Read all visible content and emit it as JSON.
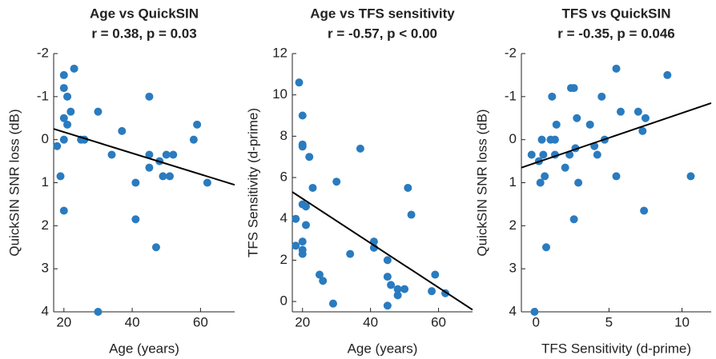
{
  "chart_data": [
    {
      "type": "scatter",
      "title": "Age vs QuickSIN",
      "subtitle": "r = 0.38, p = 0.03",
      "xlabel": "Age (years)",
      "ylabel": "QuickSIN SNR loss (dB)",
      "color": "#2a7bbf",
      "x": [
        18,
        19,
        20,
        20,
        20,
        20,
        20,
        21,
        21,
        22,
        23,
        25,
        26,
        30,
        30,
        34,
        37,
        41,
        41,
        45,
        45,
        45,
        47,
        48,
        49,
        50,
        51,
        52,
        58,
        59,
        62
      ],
      "values": [
        0.15,
        0.85,
        -1.5,
        -1.2,
        -0.5,
        0,
        1.65,
        -1,
        -0.35,
        -0.65,
        -1.65,
        0,
        0,
        -0.65,
        4,
        0.35,
        -0.2,
        1,
        1.85,
        -1,
        0.35,
        0.65,
        2.5,
        0.5,
        0.85,
        0.35,
        0.85,
        0.35,
        0,
        -0.35,
        1
      ],
      "fit_line": {
        "color": "#000000",
        "x": [
          17,
          70
        ],
        "values": [
          -0.25,
          1.05
        ]
      },
      "xlim": [
        17,
        70
      ],
      "xticks": [
        20,
        40,
        60
      ],
      "ylim": [
        -2,
        4
      ],
      "yticks": [
        -2,
        -1,
        0,
        1,
        2,
        3,
        4
      ],
      "y_reversed": true
    },
    {
      "type": "scatter",
      "title": "Age vs TFS sensitivity",
      "subtitle": "r = -0.57, p < 0.00",
      "xlabel": "Age (years)",
      "ylabel": "TFS Sensitivity (d-prime)",
      "color": "#2a7bbf",
      "x": [
        18,
        18,
        19,
        20,
        20,
        20,
        20,
        20,
        20,
        20,
        21,
        21,
        22,
        23,
        25,
        26,
        29,
        30,
        34,
        37,
        41,
        41,
        45,
        45,
        45,
        46,
        48,
        48,
        50,
        51,
        52,
        58,
        59,
        62
      ],
      "values": [
        2.7,
        4,
        10.6,
        9,
        7.6,
        7.5,
        4.7,
        2.9,
        2.5,
        2.3,
        4.6,
        3.7,
        7,
        5.5,
        1.3,
        1,
        -0.1,
        5.8,
        2.3,
        7.4,
        2.9,
        2.6,
        2,
        1.2,
        -0.2,
        0.8,
        0.3,
        0.6,
        0.6,
        5.5,
        4.2,
        0.5,
        1.3,
        0.4
      ],
      "fit_line": {
        "color": "#000000",
        "x": [
          17,
          70
        ],
        "values": [
          5.3,
          -0.4
        ]
      },
      "xlim": [
        17,
        70
      ],
      "xticks": [
        20,
        40,
        60
      ],
      "ylim": [
        -0.5,
        12
      ],
      "yticks": [
        0,
        2,
        4,
        6,
        8,
        10,
        12
      ],
      "y_reversed": false
    },
    {
      "type": "scatter",
      "title": "TFS vs QuickSIN",
      "subtitle": "r = -0.35, p = 0.046",
      "xlabel": "TFS Sensitivity (d-prime)",
      "ylabel": "QuickSIN SNR loss (dB)",
      "color": "#2a7bbf",
      "x": [
        -0.3,
        -0.1,
        0.2,
        0.3,
        0.4,
        0.5,
        0.6,
        0.7,
        1,
        1.1,
        1.3,
        1.4,
        1.3,
        2,
        2.3,
        2.4,
        2.6,
        2.6,
        2.7,
        2.8,
        2.9,
        3.7,
        4,
        4.2,
        4.5,
        4.7,
        5.5,
        5.5,
        5.8,
        7,
        7.3,
        7.4,
        7.5,
        9,
        10.6
      ],
      "values": [
        0.35,
        4,
        0.5,
        1,
        0,
        0.35,
        0.85,
        2.5,
        0,
        -1,
        0,
        -0.35,
        0.35,
        0.65,
        0.35,
        -1.2,
        -1.2,
        1.85,
        0.2,
        -0.5,
        1,
        -0.35,
        0.15,
        0.35,
        -1,
        0,
        -1.65,
        0.85,
        -0.65,
        -0.65,
        -0.2,
        1.65,
        -0.5,
        -1.5,
        0.85
      ],
      "fit_line": {
        "color": "#000000",
        "x": [
          -1,
          12
        ],
        "values": [
          0.65,
          -0.85
        ]
      },
      "xlim": [
        -1,
        12
      ],
      "xticks": [
        0,
        5,
        10
      ],
      "ylim": [
        -2,
        4
      ],
      "yticks": [
        -2,
        -1,
        0,
        1,
        2,
        3,
        4
      ],
      "y_reversed": true
    }
  ]
}
